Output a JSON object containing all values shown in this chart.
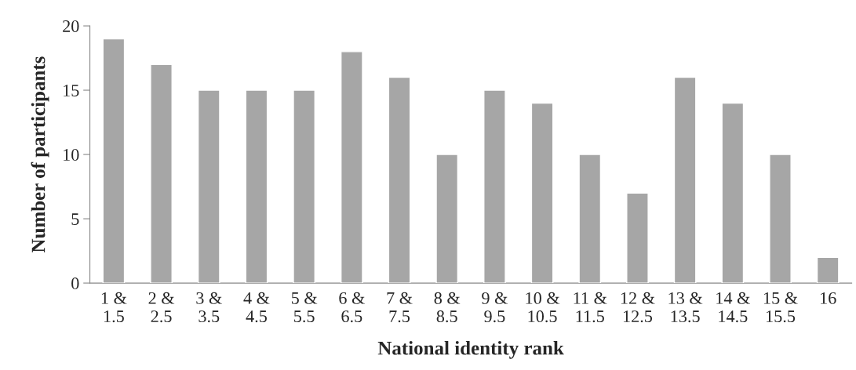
{
  "chart_data": {
    "type": "bar",
    "categories": [
      "1 &\n1.5",
      "2 &\n2.5",
      "3 &\n3.5",
      "4 &\n4.5",
      "5 &\n5.5",
      "6 &\n6.5",
      "7 &\n7.5",
      "8 &\n8.5",
      "9 &\n9.5",
      "10 &\n10.5",
      "11 &\n11.5",
      "12 &\n12.5",
      "13 &\n13.5",
      "14 &\n14.5",
      "15 &\n15.5",
      "16"
    ],
    "values": [
      19,
      17,
      15,
      15,
      15,
      18,
      16,
      10,
      15,
      14,
      10,
      7,
      16,
      14,
      10,
      2
    ],
    "color": "#a6a6a6",
    "xlabel": "National identity rank",
    "ylabel": "Number of participants",
    "ylim": [
      0,
      20
    ],
    "yticks": [
      0,
      5,
      10,
      15,
      20
    ],
    "grid": false
  }
}
